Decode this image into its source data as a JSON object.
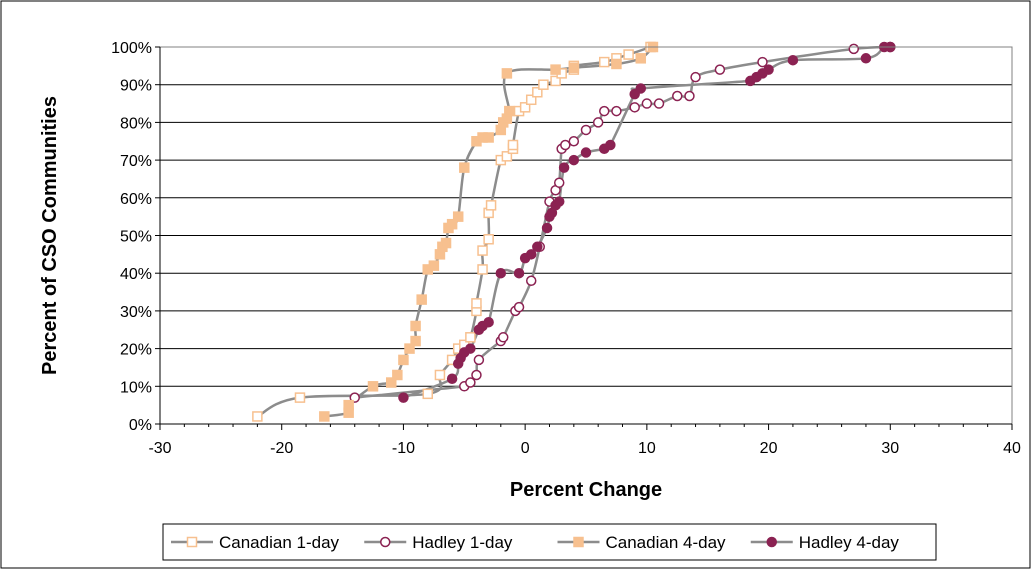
{
  "chart_data": {
    "type": "line",
    "xlabel": "Percent Change",
    "ylabel": "Percent of CSO Communities",
    "xlim": [
      -30,
      40
    ],
    "ylim": [
      0,
      100
    ],
    "x_ticks": [
      "-30",
      "-20",
      "-10",
      "0",
      "10",
      "20",
      "30",
      "40"
    ],
    "y_ticks": [
      "0%",
      "10%",
      "20%",
      "30%",
      "40%",
      "50%",
      "60%",
      "70%",
      "80%",
      "90%",
      "100%"
    ],
    "grid": "horizontal",
    "legend_position": "bottom",
    "line_color": "#8c8c8c",
    "series": [
      {
        "name": "Canadian 1-day",
        "marker": "open-square",
        "color": "#f7c08f",
        "points": [
          [
            -22,
            2
          ],
          [
            -18.5,
            7
          ],
          [
            -8,
            8
          ],
          [
            -7,
            13
          ],
          [
            -6,
            17
          ],
          [
            -5.5,
            20
          ],
          [
            -5,
            21
          ],
          [
            -4.5,
            23
          ],
          [
            -4,
            30
          ],
          [
            -4,
            32
          ],
          [
            -3.5,
            41
          ],
          [
            -3.5,
            46
          ],
          [
            -3,
            49
          ],
          [
            -3,
            56
          ],
          [
            -2.8,
            58
          ],
          [
            -2,
            70
          ],
          [
            -1.5,
            71
          ],
          [
            -1,
            73
          ],
          [
            -1,
            74
          ],
          [
            -0.5,
            83
          ],
          [
            0,
            84
          ],
          [
            0.5,
            86
          ],
          [
            1,
            88
          ],
          [
            1.5,
            90
          ],
          [
            2.5,
            91
          ],
          [
            3,
            93
          ],
          [
            4,
            94
          ],
          [
            4,
            95
          ],
          [
            6.5,
            96
          ],
          [
            7.5,
            97
          ],
          [
            8.5,
            98
          ],
          [
            10.3,
            100
          ]
        ]
      },
      {
        "name": "Hadley 1-day",
        "marker": "open-circle",
        "color": "#8b2252",
        "points": [
          [
            -14,
            7
          ],
          [
            -5,
            10
          ],
          [
            -4.5,
            11
          ],
          [
            -4,
            13
          ],
          [
            -3.8,
            17
          ],
          [
            -2,
            22
          ],
          [
            -1.8,
            23
          ],
          [
            -0.8,
            30
          ],
          [
            -0.5,
            31
          ],
          [
            0.5,
            38
          ],
          [
            1.2,
            47
          ],
          [
            2,
            59
          ],
          [
            2.5,
            62
          ],
          [
            2.8,
            64
          ],
          [
            3,
            73
          ],
          [
            3.3,
            74
          ],
          [
            4,
            75
          ],
          [
            5,
            78
          ],
          [
            6,
            80
          ],
          [
            6.5,
            83
          ],
          [
            7.5,
            83
          ],
          [
            9,
            84
          ],
          [
            10,
            85
          ],
          [
            11,
            85
          ],
          [
            12.5,
            87
          ],
          [
            13.5,
            87
          ],
          [
            14,
            92
          ],
          [
            16,
            94
          ],
          [
            19.5,
            96
          ],
          [
            27,
            99.5
          ],
          [
            30,
            100
          ]
        ]
      },
      {
        "name": "Canadian 4-day",
        "marker": "filled-square",
        "color": "#f7c08f",
        "points": [
          [
            -16.5,
            2
          ],
          [
            -14.5,
            3
          ],
          [
            -14.5,
            5
          ],
          [
            -12.5,
            10
          ],
          [
            -11,
            11
          ],
          [
            -10.5,
            13
          ],
          [
            -10,
            17
          ],
          [
            -9.5,
            20
          ],
          [
            -9,
            22
          ],
          [
            -9,
            26
          ],
          [
            -8.5,
            33
          ],
          [
            -8,
            41
          ],
          [
            -7.5,
            42
          ],
          [
            -7,
            45
          ],
          [
            -6.8,
            47
          ],
          [
            -6.5,
            48
          ],
          [
            -6.3,
            52
          ],
          [
            -6,
            53
          ],
          [
            -5.5,
            55
          ],
          [
            -5,
            68
          ],
          [
            -4,
            75
          ],
          [
            -3.5,
            76
          ],
          [
            -3,
            76
          ],
          [
            -2,
            78
          ],
          [
            -1.8,
            80
          ],
          [
            -1.5,
            81
          ],
          [
            -1.3,
            83
          ],
          [
            -1.5,
            93
          ],
          [
            2.5,
            94
          ],
          [
            4,
            94.5
          ],
          [
            7.5,
            95.5
          ],
          [
            9.5,
            97
          ],
          [
            10.5,
            100
          ]
        ]
      },
      {
        "name": "Hadley 4-day",
        "marker": "filled-circle",
        "color": "#8b2252",
        "points": [
          [
            -10,
            7
          ],
          [
            -6,
            12
          ],
          [
            -5.5,
            16
          ],
          [
            -5.3,
            17.5
          ],
          [
            -5,
            19
          ],
          [
            -4.5,
            20
          ],
          [
            -3.8,
            25
          ],
          [
            -3.5,
            26
          ],
          [
            -3,
            27
          ],
          [
            -2,
            40
          ],
          [
            -0.5,
            40
          ],
          [
            0,
            44
          ],
          [
            0.5,
            45
          ],
          [
            1,
            47
          ],
          [
            1.8,
            52
          ],
          [
            2,
            55
          ],
          [
            2.2,
            56
          ],
          [
            2.5,
            58
          ],
          [
            2.8,
            59
          ],
          [
            3.2,
            68
          ],
          [
            4,
            70
          ],
          [
            5,
            72
          ],
          [
            6.5,
            73
          ],
          [
            7,
            74
          ],
          [
            9,
            87.5
          ],
          [
            9.5,
            89
          ],
          [
            18.5,
            91
          ],
          [
            19,
            92
          ],
          [
            19.5,
            93
          ],
          [
            20,
            94
          ],
          [
            22,
            96.5
          ],
          [
            28,
            97
          ],
          [
            29.5,
            100
          ],
          [
            30,
            100
          ]
        ]
      }
    ]
  }
}
